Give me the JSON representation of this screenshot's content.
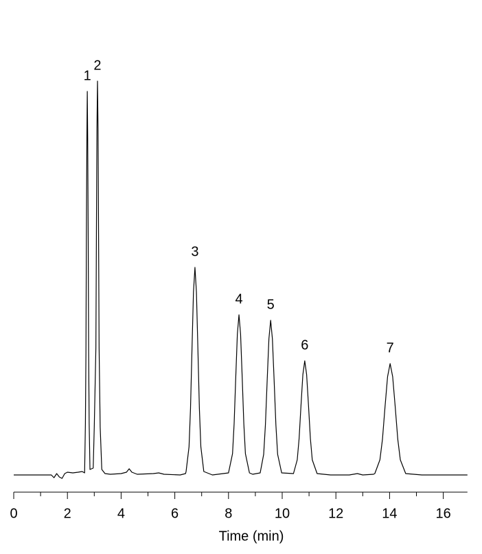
{
  "chart_data": {
    "type": "line",
    "x_label": "Time (min)",
    "xlim": [
      0,
      16.9
    ],
    "xticks": [
      0,
      2,
      4,
      6,
      8,
      10,
      12,
      14,
      16
    ],
    "xminorticks": [
      1,
      3,
      5,
      7,
      9,
      11,
      13,
      15
    ],
    "ylim": [
      -20,
      600
    ],
    "x": [
      0,
      1.4,
      1.5,
      1.6,
      1.7,
      1.8,
      1.9,
      2.0,
      2.2,
      2.4,
      2.55,
      2.64,
      2.67,
      2.69,
      2.705,
      2.725,
      2.74,
      2.755,
      2.775,
      2.79,
      2.81,
      2.84,
      2.96,
      3.0,
      3.06,
      3.08,
      3.1,
      3.12,
      3.14,
      3.16,
      3.18,
      3.22,
      3.28,
      3.4,
      3.6,
      4.0,
      4.2,
      4.3,
      4.4,
      4.6,
      5.2,
      5.4,
      5.6,
      6.2,
      6.4,
      6.42,
      6.53,
      6.585,
      6.64,
      6.695,
      6.75,
      6.805,
      6.86,
      6.915,
      6.97,
      7.08,
      7.4,
      8.0,
      8.15,
      8.21,
      8.27,
      8.33,
      8.39,
      8.45,
      8.51,
      8.57,
      8.63,
      8.78,
      8.9,
      9.18,
      9.31,
      9.375,
      9.44,
      9.505,
      9.57,
      9.635,
      9.7,
      9.765,
      9.83,
      9.98,
      10.42,
      10.56,
      10.63,
      10.7,
      10.77,
      10.84,
      10.91,
      10.98,
      11.05,
      11.12,
      11.3,
      11.8,
      12.5,
      12.8,
      13.0,
      13.4,
      13.45,
      13.64,
      13.735,
      13.83,
      13.925,
      14.02,
      14.115,
      14.21,
      14.305,
      14.4,
      14.6,
      15.2,
      16.9
    ],
    "series": [
      {
        "color": "#000000",
        "values": [
          0,
          0,
          -4,
          2,
          -3,
          -5,
          2,
          4,
          3,
          4,
          5,
          3,
          75,
          178,
          340,
          490,
          558,
          490,
          340,
          178,
          75,
          8,
          10,
          70,
          185,
          350,
          505,
          573,
          505,
          350,
          185,
          70,
          8,
          2,
          1,
          2,
          4,
          9,
          4,
          1,
          2,
          3,
          1,
          0,
          2,
          5,
          41,
          97,
          183,
          266,
          302,
          266,
          183,
          97,
          41,
          5,
          0,
          3,
          31,
          75,
          142,
          205,
          233,
          205,
          142,
          75,
          31,
          3,
          1,
          3,
          30,
          73,
          137,
          198,
          225,
          198,
          137,
          73,
          30,
          3,
          2,
          22,
          53,
          101,
          146,
          166,
          146,
          101,
          53,
          22,
          2,
          0,
          0,
          2,
          0,
          1,
          2,
          22,
          52,
          99,
          143,
          162,
          143,
          99,
          52,
          22,
          2,
          0,
          0
        ]
      }
    ],
    "peak_labels": [
      "1",
      "2",
      "3",
      "4",
      "5",
      "6",
      "7"
    ],
    "peak_x": [
      2.74,
      3.12,
      6.75,
      8.39,
      9.57,
      10.84,
      14.02
    ]
  }
}
